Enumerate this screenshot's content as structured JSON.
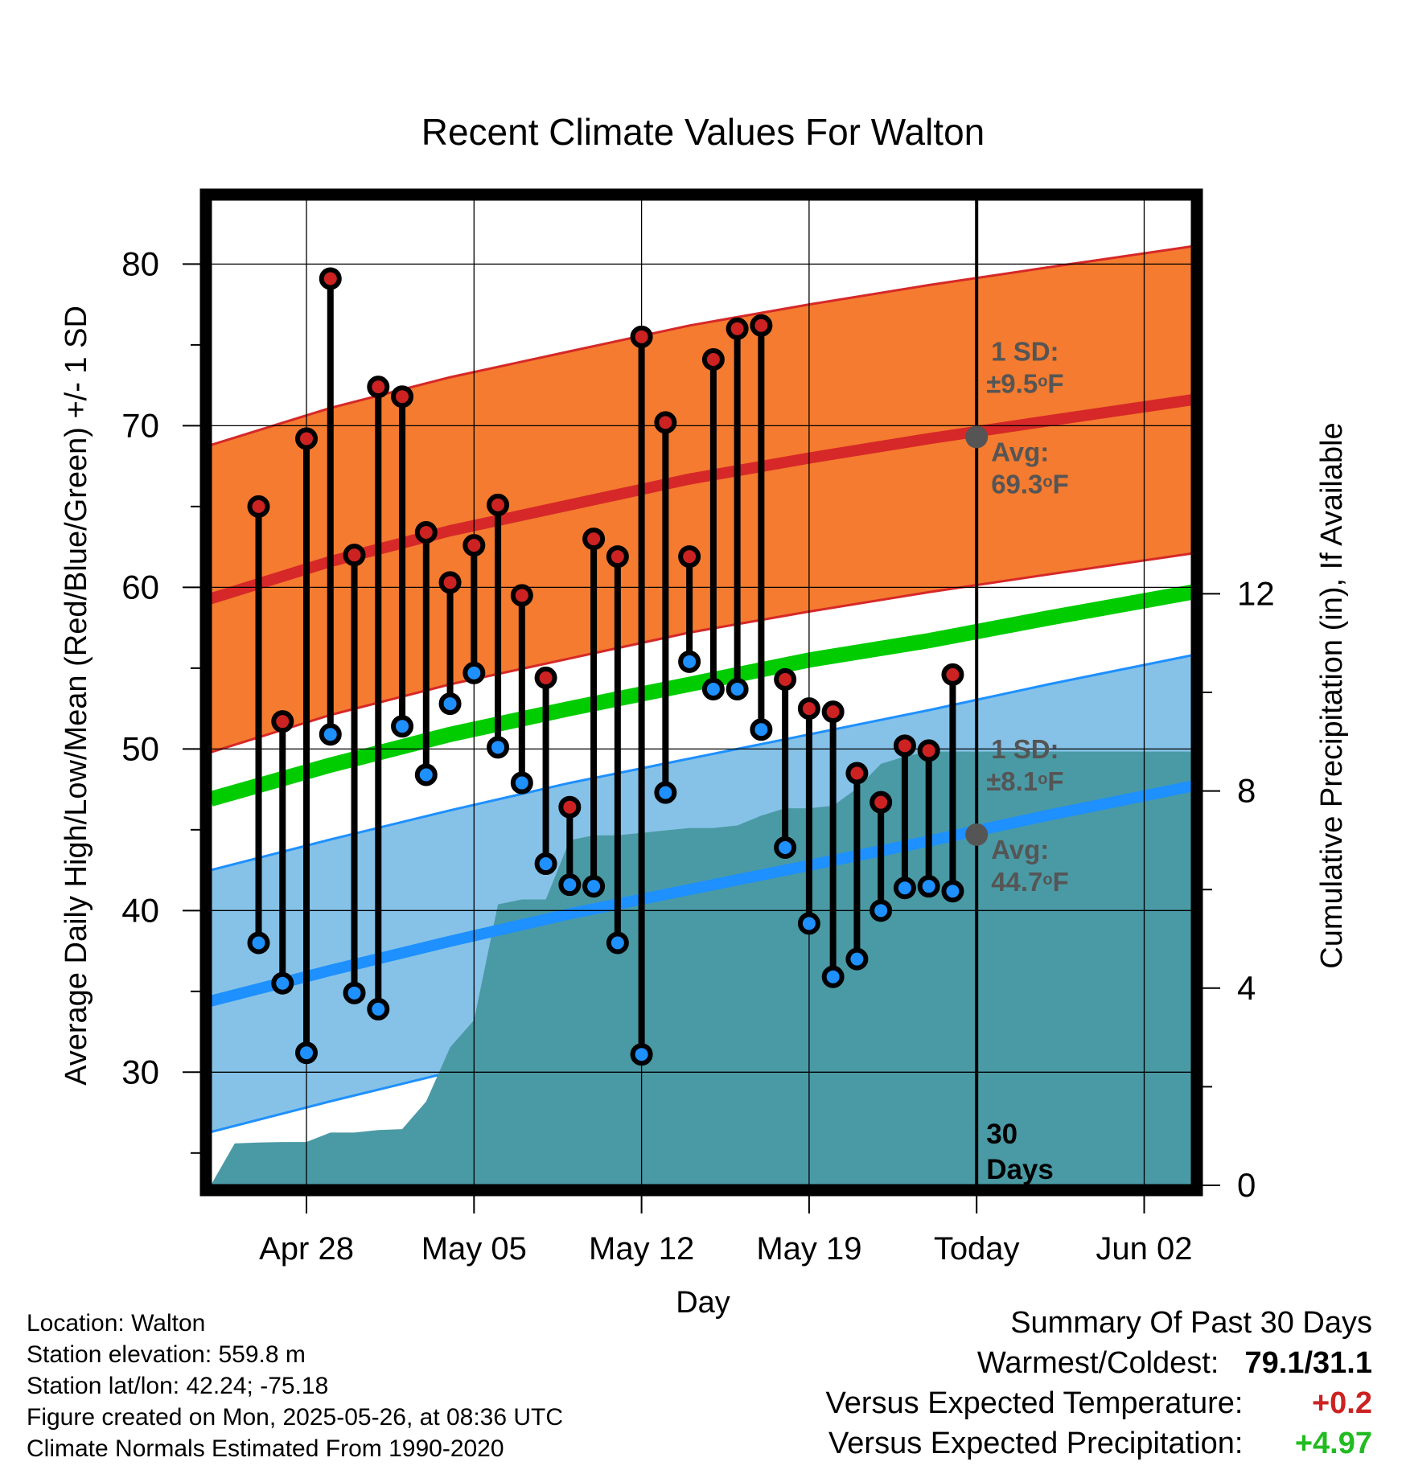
{
  "chart_data": {
    "type": "line",
    "title": "Recent Climate Values For Walton",
    "xlabel": "Day",
    "ylabel": "Average Daily High/Low/Mean (Red/Blue/Green) +/- 1 SD",
    "y2label": "Cumulative Precipitation (in), If Available",
    "ylim": [
      23,
      84
    ],
    "y2lim": [
      0,
      20
    ],
    "yticks": [
      30,
      40,
      50,
      60,
      70,
      80
    ],
    "y2ticks": [
      0,
      4,
      8,
      12
    ],
    "xlim": [
      "2025-04-24",
      "2025-06-04"
    ],
    "xticks": [
      {
        "date": "2025-04-28",
        "label": "Apr 28"
      },
      {
        "date": "2025-05-05",
        "label": "May 05"
      },
      {
        "date": "2025-05-12",
        "label": "May 12"
      },
      {
        "date": "2025-05-19",
        "label": "May 19"
      },
      {
        "date": "2025-05-26",
        "label": "Today"
      },
      {
        "date": "2025-06-02",
        "label": "Jun 02"
      }
    ],
    "grid": true,
    "today": "2025-05-26",
    "today_label": "30\nDays",
    "observed": [
      {
        "date": "2025-04-26",
        "high": 65.0,
        "low": 38.0
      },
      {
        "date": "2025-04-27",
        "high": 51.7,
        "low": 35.5
      },
      {
        "date": "2025-04-28",
        "high": 69.2,
        "low": 31.2
      },
      {
        "date": "2025-04-29",
        "high": 79.1,
        "low": 50.9
      },
      {
        "date": "2025-04-30",
        "high": 62.0,
        "low": 34.9
      },
      {
        "date": "2025-05-01",
        "high": 72.4,
        "low": 33.9
      },
      {
        "date": "2025-05-02",
        "high": 71.8,
        "low": 51.4
      },
      {
        "date": "2025-05-03",
        "high": 63.4,
        "low": 48.4
      },
      {
        "date": "2025-05-04",
        "high": 60.3,
        "low": 52.8
      },
      {
        "date": "2025-05-05",
        "high": 62.6,
        "low": 54.7
      },
      {
        "date": "2025-05-06",
        "high": 65.1,
        "low": 50.1
      },
      {
        "date": "2025-05-07",
        "high": 59.5,
        "low": 47.9
      },
      {
        "date": "2025-05-08",
        "high": 54.4,
        "low": 42.9
      },
      {
        "date": "2025-05-09",
        "high": 46.4,
        "low": 41.6
      },
      {
        "date": "2025-05-10",
        "high": 63.0,
        "low": 41.5
      },
      {
        "date": "2025-05-11",
        "high": 61.9,
        "low": 38.0
      },
      {
        "date": "2025-05-12",
        "high": 75.5,
        "low": 31.1
      },
      {
        "date": "2025-05-13",
        "high": 70.2,
        "low": 47.3
      },
      {
        "date": "2025-05-14",
        "high": 61.9,
        "low": 55.4
      },
      {
        "date": "2025-05-15",
        "high": 74.1,
        "low": 53.7
      },
      {
        "date": "2025-05-16",
        "high": 76.0,
        "low": 53.7
      },
      {
        "date": "2025-05-17",
        "high": 76.2,
        "low": 51.2
      },
      {
        "date": "2025-05-18",
        "high": 54.3,
        "low": 43.9
      },
      {
        "date": "2025-05-19",
        "high": 52.5,
        "low": 39.2
      },
      {
        "date": "2025-05-20",
        "high": 52.3,
        "low": 35.9
      },
      {
        "date": "2025-05-21",
        "high": 48.5,
        "low": 37.0
      },
      {
        "date": "2025-05-22",
        "high": 46.7,
        "low": 40.0
      },
      {
        "date": "2025-05-23",
        "high": 50.2,
        "low": 41.4
      },
      {
        "date": "2025-05-24",
        "high": 49.9,
        "low": 41.5
      },
      {
        "date": "2025-05-25",
        "high": 54.6,
        "low": 41.2
      }
    ],
    "normals": {
      "dates": [
        "2025-04-24",
        "2025-04-29",
        "2025-05-04",
        "2025-05-09",
        "2025-05-14",
        "2025-05-19",
        "2025-05-24",
        "2025-05-29",
        "2025-06-04"
      ],
      "high_avg": [
        59.3,
        61.6,
        63.5,
        65.1,
        66.7,
        68.0,
        69.2,
        70.3,
        71.6
      ],
      "low_avg": [
        34.4,
        36.3,
        38.1,
        39.8,
        41.3,
        42.8,
        44.3,
        45.9,
        47.7
      ],
      "mean_avg": [
        46.9,
        49.0,
        50.9,
        52.5,
        54.0,
        55.5,
        56.7,
        58.1,
        59.7
      ]
    },
    "high_sd": 9.5,
    "low_sd": 8.1,
    "precip": {
      "dates": [
        "2025-04-24",
        "2025-04-25",
        "2025-04-26",
        "2025-04-27",
        "2025-04-28",
        "2025-04-29",
        "2025-04-30",
        "2025-05-01",
        "2025-05-02",
        "2025-05-03",
        "2025-05-04",
        "2025-05-05",
        "2025-05-06",
        "2025-05-07",
        "2025-05-08",
        "2025-05-09",
        "2025-05-10",
        "2025-05-11",
        "2025-05-12",
        "2025-05-13",
        "2025-05-14",
        "2025-05-15",
        "2025-05-16",
        "2025-05-17",
        "2025-05-18",
        "2025-05-19",
        "2025-05-20",
        "2025-05-21",
        "2025-05-22",
        "2025-05-23",
        "2025-05-24",
        "2025-05-25",
        "2025-05-26",
        "2025-06-04"
      ],
      "cumulative": [
        0.0,
        0.85,
        0.87,
        0.88,
        0.88,
        1.07,
        1.07,
        1.12,
        1.14,
        1.7,
        2.8,
        3.35,
        5.7,
        5.8,
        5.8,
        7.0,
        7.1,
        7.1,
        7.15,
        7.2,
        7.25,
        7.25,
        7.3,
        7.5,
        7.65,
        7.65,
        7.7,
        8.05,
        8.55,
        8.7,
        8.8,
        8.8,
        8.8,
        8.8
      ]
    },
    "annotations": [
      {
        "sd_label": "1 SD:",
        "sd_value": "±9.5",
        "avg_label": "Avg:",
        "avg_value": "69.3",
        "unit": "F",
        "degree": "o",
        "value": 69.3
      },
      {
        "sd_label": "1 SD:",
        "sd_value": "±8.1",
        "avg_label": "Avg:",
        "avg_value": "44.7",
        "unit": "F",
        "degree": "o",
        "value": 44.7
      }
    ],
    "colors": {
      "high_band": "#F47B2F",
      "high_line": "#D62828",
      "low_band": "#86C2E7",
      "low_line": "#1E90FF",
      "mean_line": "#00CC00",
      "precip": "#4A9AA5",
      "high_marker": "#CC2222",
      "low_marker": "#1E90FF",
      "annotation": "#555555"
    }
  },
  "info": {
    "location": "Location: Walton",
    "elevation": "Station elevation: 559.8 m",
    "latlon": "Station lat/lon: 42.24; -75.18",
    "created": "Figure created on Mon, 2025-05-26, at 08:36 UTC",
    "normals": "Climate Normals Estimated From 1990-2020"
  },
  "summary": {
    "title": "Summary Of Past 30 Days",
    "warm_label": "Warmest/Coldest:",
    "warm_value": "79.1/31.1",
    "temp_label": "Versus Expected Temperature:",
    "temp_value": "+0.2",
    "temp_color": "#CC2222",
    "precip_label": "Versus Expected Precipitation:",
    "precip_value": "+4.97",
    "precip_color": "#22BB22"
  }
}
